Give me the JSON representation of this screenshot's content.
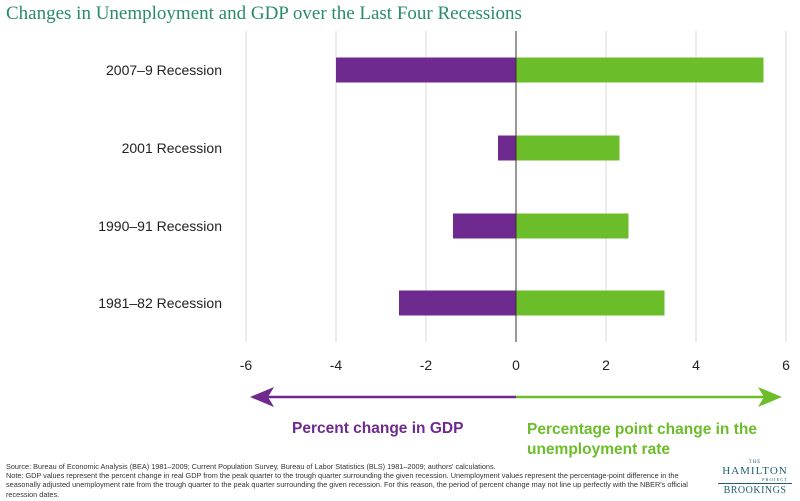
{
  "chart_data": {
    "type": "bar",
    "orientation": "horizontal",
    "title": "Changes in Unemployment and GDP over the Last Four Recessions",
    "categories": [
      "2007–9 Recession",
      "2001 Recession",
      "1990–91 Recession",
      "1981–82 Recession"
    ],
    "series": [
      {
        "name": "Percent change in GDP",
        "color": "#6e2a8e",
        "values": [
          -4.0,
          -0.4,
          -1.4,
          -2.6
        ]
      },
      {
        "name": "Percentage point change in the unemployment rate",
        "color": "#6cbd2a",
        "values": [
          5.5,
          2.3,
          2.5,
          3.3
        ]
      }
    ],
    "xlim": [
      -6,
      6
    ],
    "xticks": [
      -6,
      -4,
      -2,
      0,
      2,
      4,
      6
    ],
    "grid": true
  },
  "annotations": {
    "left_label": "Percent change in GDP",
    "right_label": "Percentage point change in the unemployment rate"
  },
  "source": {
    "line1": "Source: Bureau of Economic Analysis (BEA) 1981–2009; Current Population Survey, Bureau of Labor Statistics (BLS) 1981–2009; authors' calculations.",
    "line2": "Note: GDP values represent the percent change in real GDP from the peak quarter to the trough quarter surrounding the given recession. Unemployment values represent the percentage-point difference in the seasonally adjusted unemployment rate from the trough quarter to the peak quarter surrounding the given recession. For this reason, the period of percent change may not line up perfectly with the NBER's official recession dates."
  },
  "logo": {
    "the": "THE",
    "hamilton": "HAMILTON",
    "project": "PROJECT",
    "brookings": "BROOKINGS"
  },
  "colors": {
    "gdp_arrow": "#6e2a8e",
    "unemp_arrow": "#6cbd2a",
    "title": "#2a8a6c"
  }
}
